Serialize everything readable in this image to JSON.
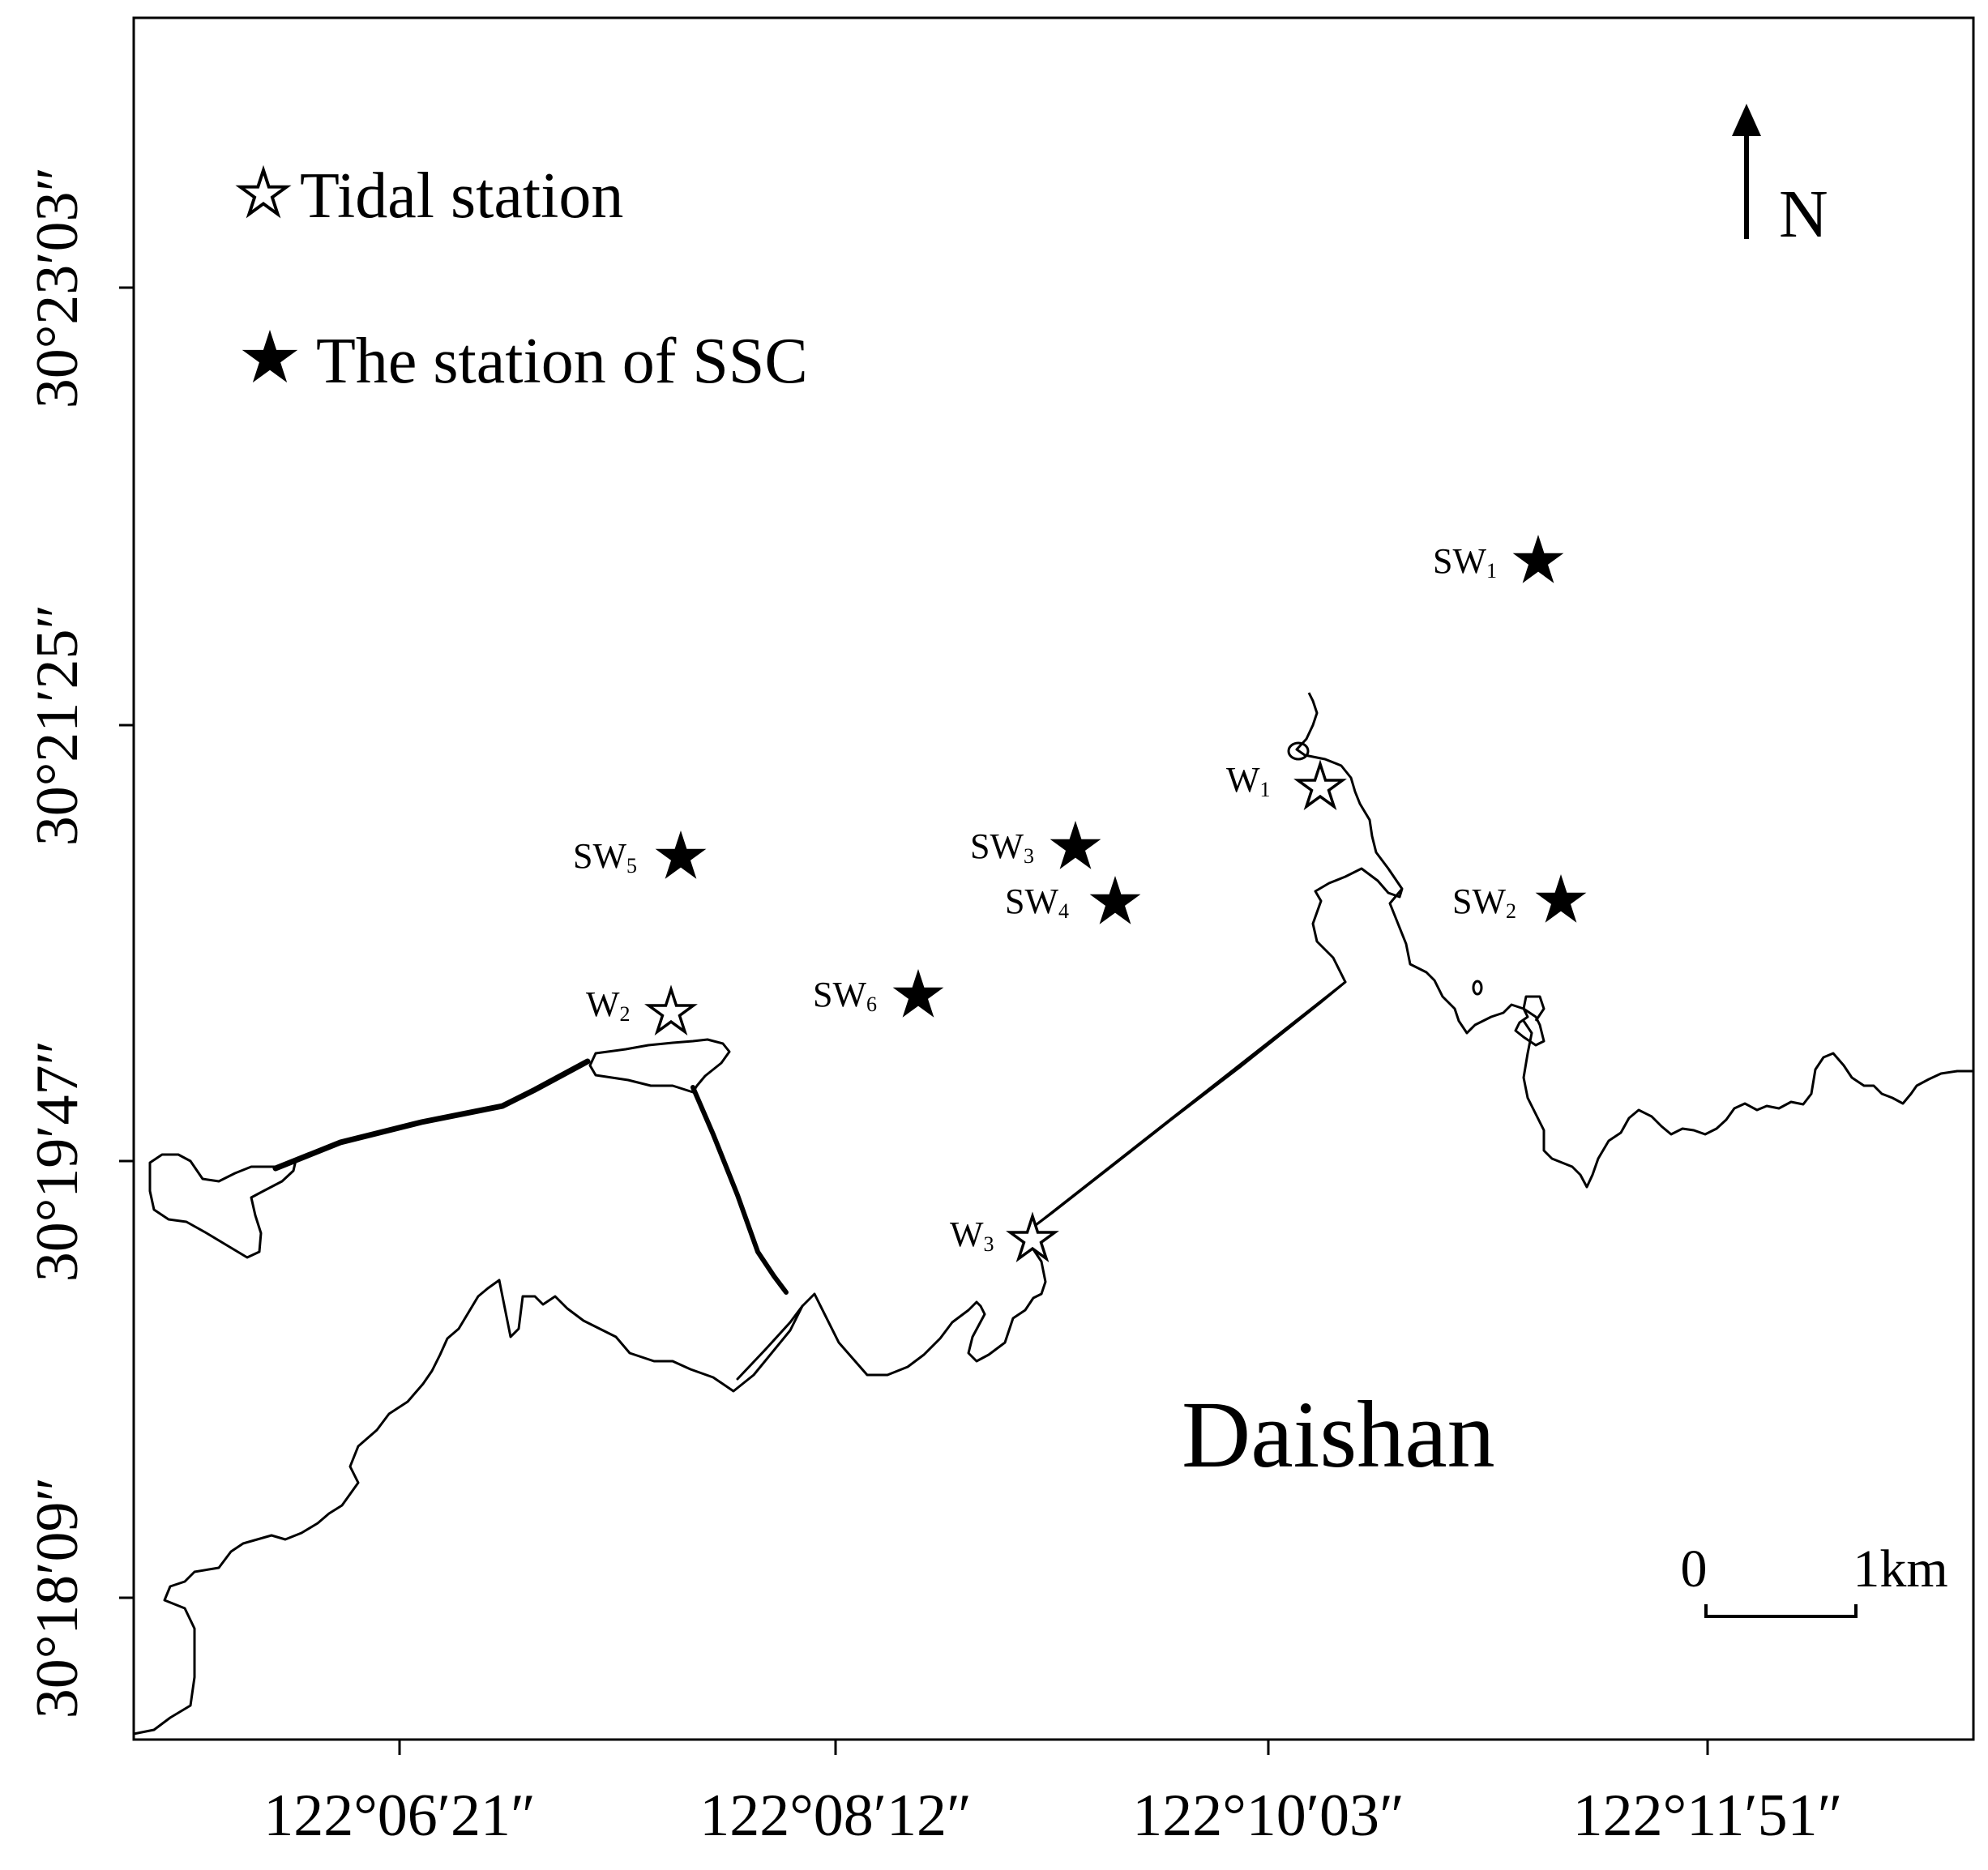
{
  "map": {
    "legend": {
      "tidal_station_label": "Tidal station",
      "ssc_station_label": "The station of SSC"
    },
    "north_arrow_label": "N",
    "place_name": "Daishan",
    "scale_bar": {
      "start_label": "0",
      "end_label": "1km"
    },
    "lon_ticks": [
      "122°06′21″",
      "122°08′12″",
      "122°10′03″",
      "122°11′51″"
    ],
    "lat_ticks": [
      "30°23′03″",
      "30°21′25″",
      "30°19′47″",
      "30°18′09″"
    ],
    "tidal_stations": [
      {
        "base": "W",
        "sub": "1"
      },
      {
        "base": "W",
        "sub": "2"
      },
      {
        "base": "W",
        "sub": "3"
      }
    ],
    "ssc_stations": [
      {
        "base": "SW",
        "sub": "1"
      },
      {
        "base": "SW",
        "sub": "2"
      },
      {
        "base": "SW",
        "sub": "3"
      },
      {
        "base": "SW",
        "sub": "4"
      },
      {
        "base": "SW",
        "sub": "5"
      },
      {
        "base": "SW",
        "sub": "6"
      }
    ],
    "colors": {
      "ink": "#000000",
      "background": "#ffffff"
    },
    "icons": {
      "tidal_station": "open-star-icon",
      "ssc_station": "filled-star-icon",
      "north": "north-arrow-icon"
    }
  }
}
